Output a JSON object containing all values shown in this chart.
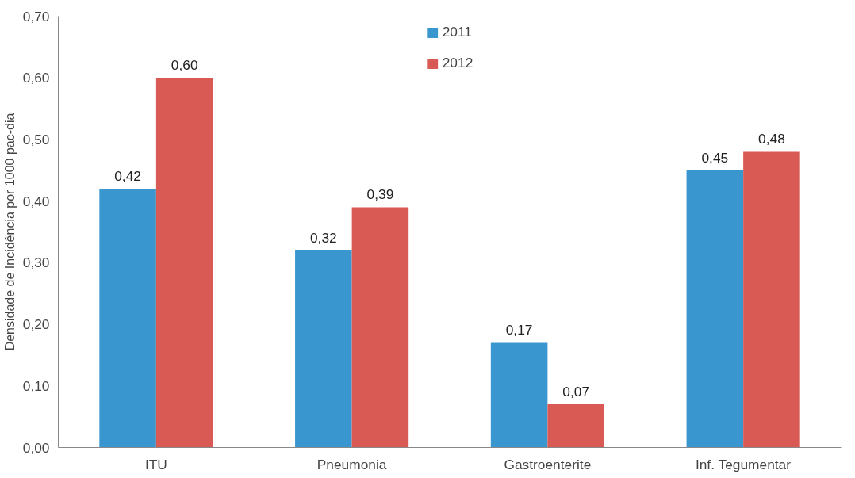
{
  "chart_data": {
    "type": "bar",
    "ylabel": "Densidade de Incidência por 1000 pac-dia",
    "categories": [
      "ITU",
      "Pneumonia",
      "Gastroenterite",
      "Inf. Tegumentar"
    ],
    "series": [
      {
        "name": "2011",
        "color": "#3a96cf",
        "values": [
          0.42,
          0.32,
          0.17,
          0.45
        ],
        "value_labels": [
          "0,42",
          "0,32",
          "0,17",
          "0,45"
        ]
      },
      {
        "name": "2012",
        "color": "#d95a55",
        "values": [
          0.6,
          0.39,
          0.07,
          0.48
        ],
        "value_labels": [
          "0,60",
          "0,39",
          "0,07",
          "0,48"
        ]
      }
    ],
    "ylim": [
      0,
      0.7
    ],
    "yticks": [
      {
        "value": 0,
        "label": "0,00"
      },
      {
        "value": 0.1,
        "label": "0,10"
      },
      {
        "value": 0.2,
        "label": "0,20"
      },
      {
        "value": 0.3,
        "label": "0,30"
      },
      {
        "value": 0.4,
        "label": "0,40"
      },
      {
        "value": 0.5,
        "label": "0,50"
      },
      {
        "value": 0.6,
        "label": "0,60"
      },
      {
        "value": 0.7,
        "label": "0,70"
      }
    ],
    "grid": false,
    "legend": "top"
  }
}
